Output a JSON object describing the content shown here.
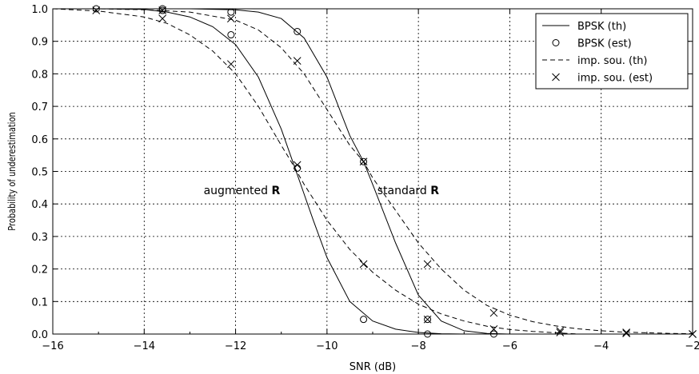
{
  "chart_data": {
    "type": "line",
    "xlabel": "SNR (dB)",
    "ylabel": "Probability of underestimation",
    "xlim": [
      -16,
      -2
    ],
    "ylim": [
      0.0,
      1.0
    ],
    "x_ticks": [
      "−16",
      "−14",
      "−12",
      "−10",
      "−8",
      "−6",
      "−4",
      "−2"
    ],
    "x_tick_values": [
      -16,
      -14,
      -12,
      -10,
      -8,
      -6,
      -4,
      -2
    ],
    "y_ticks": [
      "0.0",
      "0.1",
      "0.2",
      "0.3",
      "0.4",
      "0.5",
      "0.6",
      "0.7",
      "0.8",
      "0.9",
      "1.0"
    ],
    "y_tick_values": [
      0.0,
      0.1,
      0.2,
      0.3,
      0.4,
      0.5,
      0.6,
      0.7,
      0.8,
      0.9,
      1.0
    ],
    "grid": true,
    "legend_position": "top-right",
    "legend": [
      {
        "label": "BPSK (th)",
        "style": "solid"
      },
      {
        "label": "BPSK (est)",
        "style": "circle"
      },
      {
        "label": "imp. sou. (th)",
        "style": "dashed"
      },
      {
        "label": "imp. sou. (est)",
        "style": "cross"
      }
    ],
    "annotations": [
      {
        "text": "augmented ",
        "bold": "R",
        "x": -12.7,
        "y": 0.43
      },
      {
        "text": "standard ",
        "bold": "R",
        "x": -8.9,
        "y": 0.43
      }
    ],
    "series": [
      {
        "name": "BPSK (th)",
        "label": "augmented R",
        "style": "solid",
        "x": [
          -16,
          -15,
          -14,
          -13.5,
          -13,
          -12.5,
          -12,
          -11.5,
          -11,
          -10.7,
          -10.5,
          -10.3,
          -10,
          -9.5,
          -9,
          -8.5,
          -8,
          -7.5,
          -7
        ],
        "y": [
          1.0,
          1.0,
          0.998,
          0.99,
          0.975,
          0.945,
          0.89,
          0.79,
          0.63,
          0.51,
          0.43,
          0.35,
          0.235,
          0.1,
          0.04,
          0.015,
          0.005,
          0.001,
          0.0
        ]
      },
      {
        "name": "BPSK (th)",
        "label": "standard R",
        "style": "solid",
        "x": [
          -16,
          -14,
          -13,
          -12,
          -11.5,
          -11,
          -10.5,
          -10,
          -9.5,
          -9.2,
          -9,
          -8.5,
          -8,
          -7.5,
          -7,
          -6.5,
          -6
        ],
        "y": [
          1.0,
          1.0,
          1.0,
          0.997,
          0.99,
          0.97,
          0.91,
          0.79,
          0.61,
          0.53,
          0.46,
          0.28,
          0.12,
          0.04,
          0.01,
          0.002,
          0.0
        ]
      },
      {
        "name": "imp. sou. (th)",
        "label": "augmented R",
        "style": "dashed",
        "x": [
          -16,
          -15,
          -14,
          -13.5,
          -13,
          -12.5,
          -12,
          -11.5,
          -11,
          -10.7,
          -10.5,
          -10,
          -9.5,
          -9,
          -8.5,
          -8,
          -7.5,
          -7,
          -6.5,
          -6,
          -5.5,
          -5,
          -4.5
        ],
        "y": [
          1.0,
          0.993,
          0.975,
          0.955,
          0.92,
          0.87,
          0.8,
          0.7,
          0.58,
          0.51,
          0.46,
          0.35,
          0.26,
          0.19,
          0.135,
          0.092,
          0.062,
          0.04,
          0.024,
          0.014,
          0.008,
          0.004,
          0.0
        ]
      },
      {
        "name": "imp. sou. (th)",
        "label": "standard R",
        "style": "dashed",
        "x": [
          -16,
          -15,
          -14,
          -13,
          -12,
          -11.5,
          -11,
          -10.5,
          -10,
          -9.5,
          -9.2,
          -9,
          -8.5,
          -8,
          -7.5,
          -7,
          -6.5,
          -6,
          -5.5,
          -5,
          -4.5,
          -4,
          -3.5,
          -3,
          -2.5,
          -2
        ],
        "y": [
          1.0,
          1.0,
          0.997,
          0.99,
          0.965,
          0.935,
          0.88,
          0.8,
          0.69,
          0.58,
          0.53,
          0.48,
          0.38,
          0.28,
          0.2,
          0.135,
          0.088,
          0.058,
          0.038,
          0.025,
          0.016,
          0.01,
          0.006,
          0.004,
          0.002,
          0.001
        ]
      },
      {
        "name": "BPSK (est)",
        "label": "augmented R",
        "style": "circle",
        "x": [
          -15.05,
          -13.6,
          -12.1,
          -10.65,
          -9.2,
          -7.8
        ],
        "y": [
          1.0,
          0.995,
          0.92,
          0.51,
          0.045,
          0.0
        ]
      },
      {
        "name": "BPSK (est)",
        "label": "standard R",
        "style": "circle",
        "x": [
          -13.6,
          -12.1,
          -10.65,
          -9.2,
          -7.8,
          -6.35
        ],
        "y": [
          1.0,
          0.99,
          0.93,
          0.53,
          0.045,
          0.0
        ]
      },
      {
        "name": "imp. sou. (est)",
        "label": "augmented R",
        "style": "cross",
        "x": [
          -15.05,
          -13.6,
          -12.1,
          -10.65,
          -9.2,
          -7.8,
          -6.35,
          -4.9,
          -3.45,
          -2.0
        ],
        "y": [
          0.995,
          0.97,
          0.83,
          0.52,
          0.215,
          0.045,
          0.015,
          0.005,
          0.002,
          0.0
        ]
      },
      {
        "name": "imp. sou. (est)",
        "label": "standard R",
        "style": "cross",
        "x": [
          -13.6,
          -12.1,
          -10.65,
          -9.2,
          -7.8,
          -6.35,
          -4.9,
          -3.45,
          -2.0
        ],
        "y": [
          0.995,
          0.97,
          0.84,
          0.53,
          0.215,
          0.065,
          0.01,
          0.005,
          0.0
        ]
      }
    ]
  }
}
